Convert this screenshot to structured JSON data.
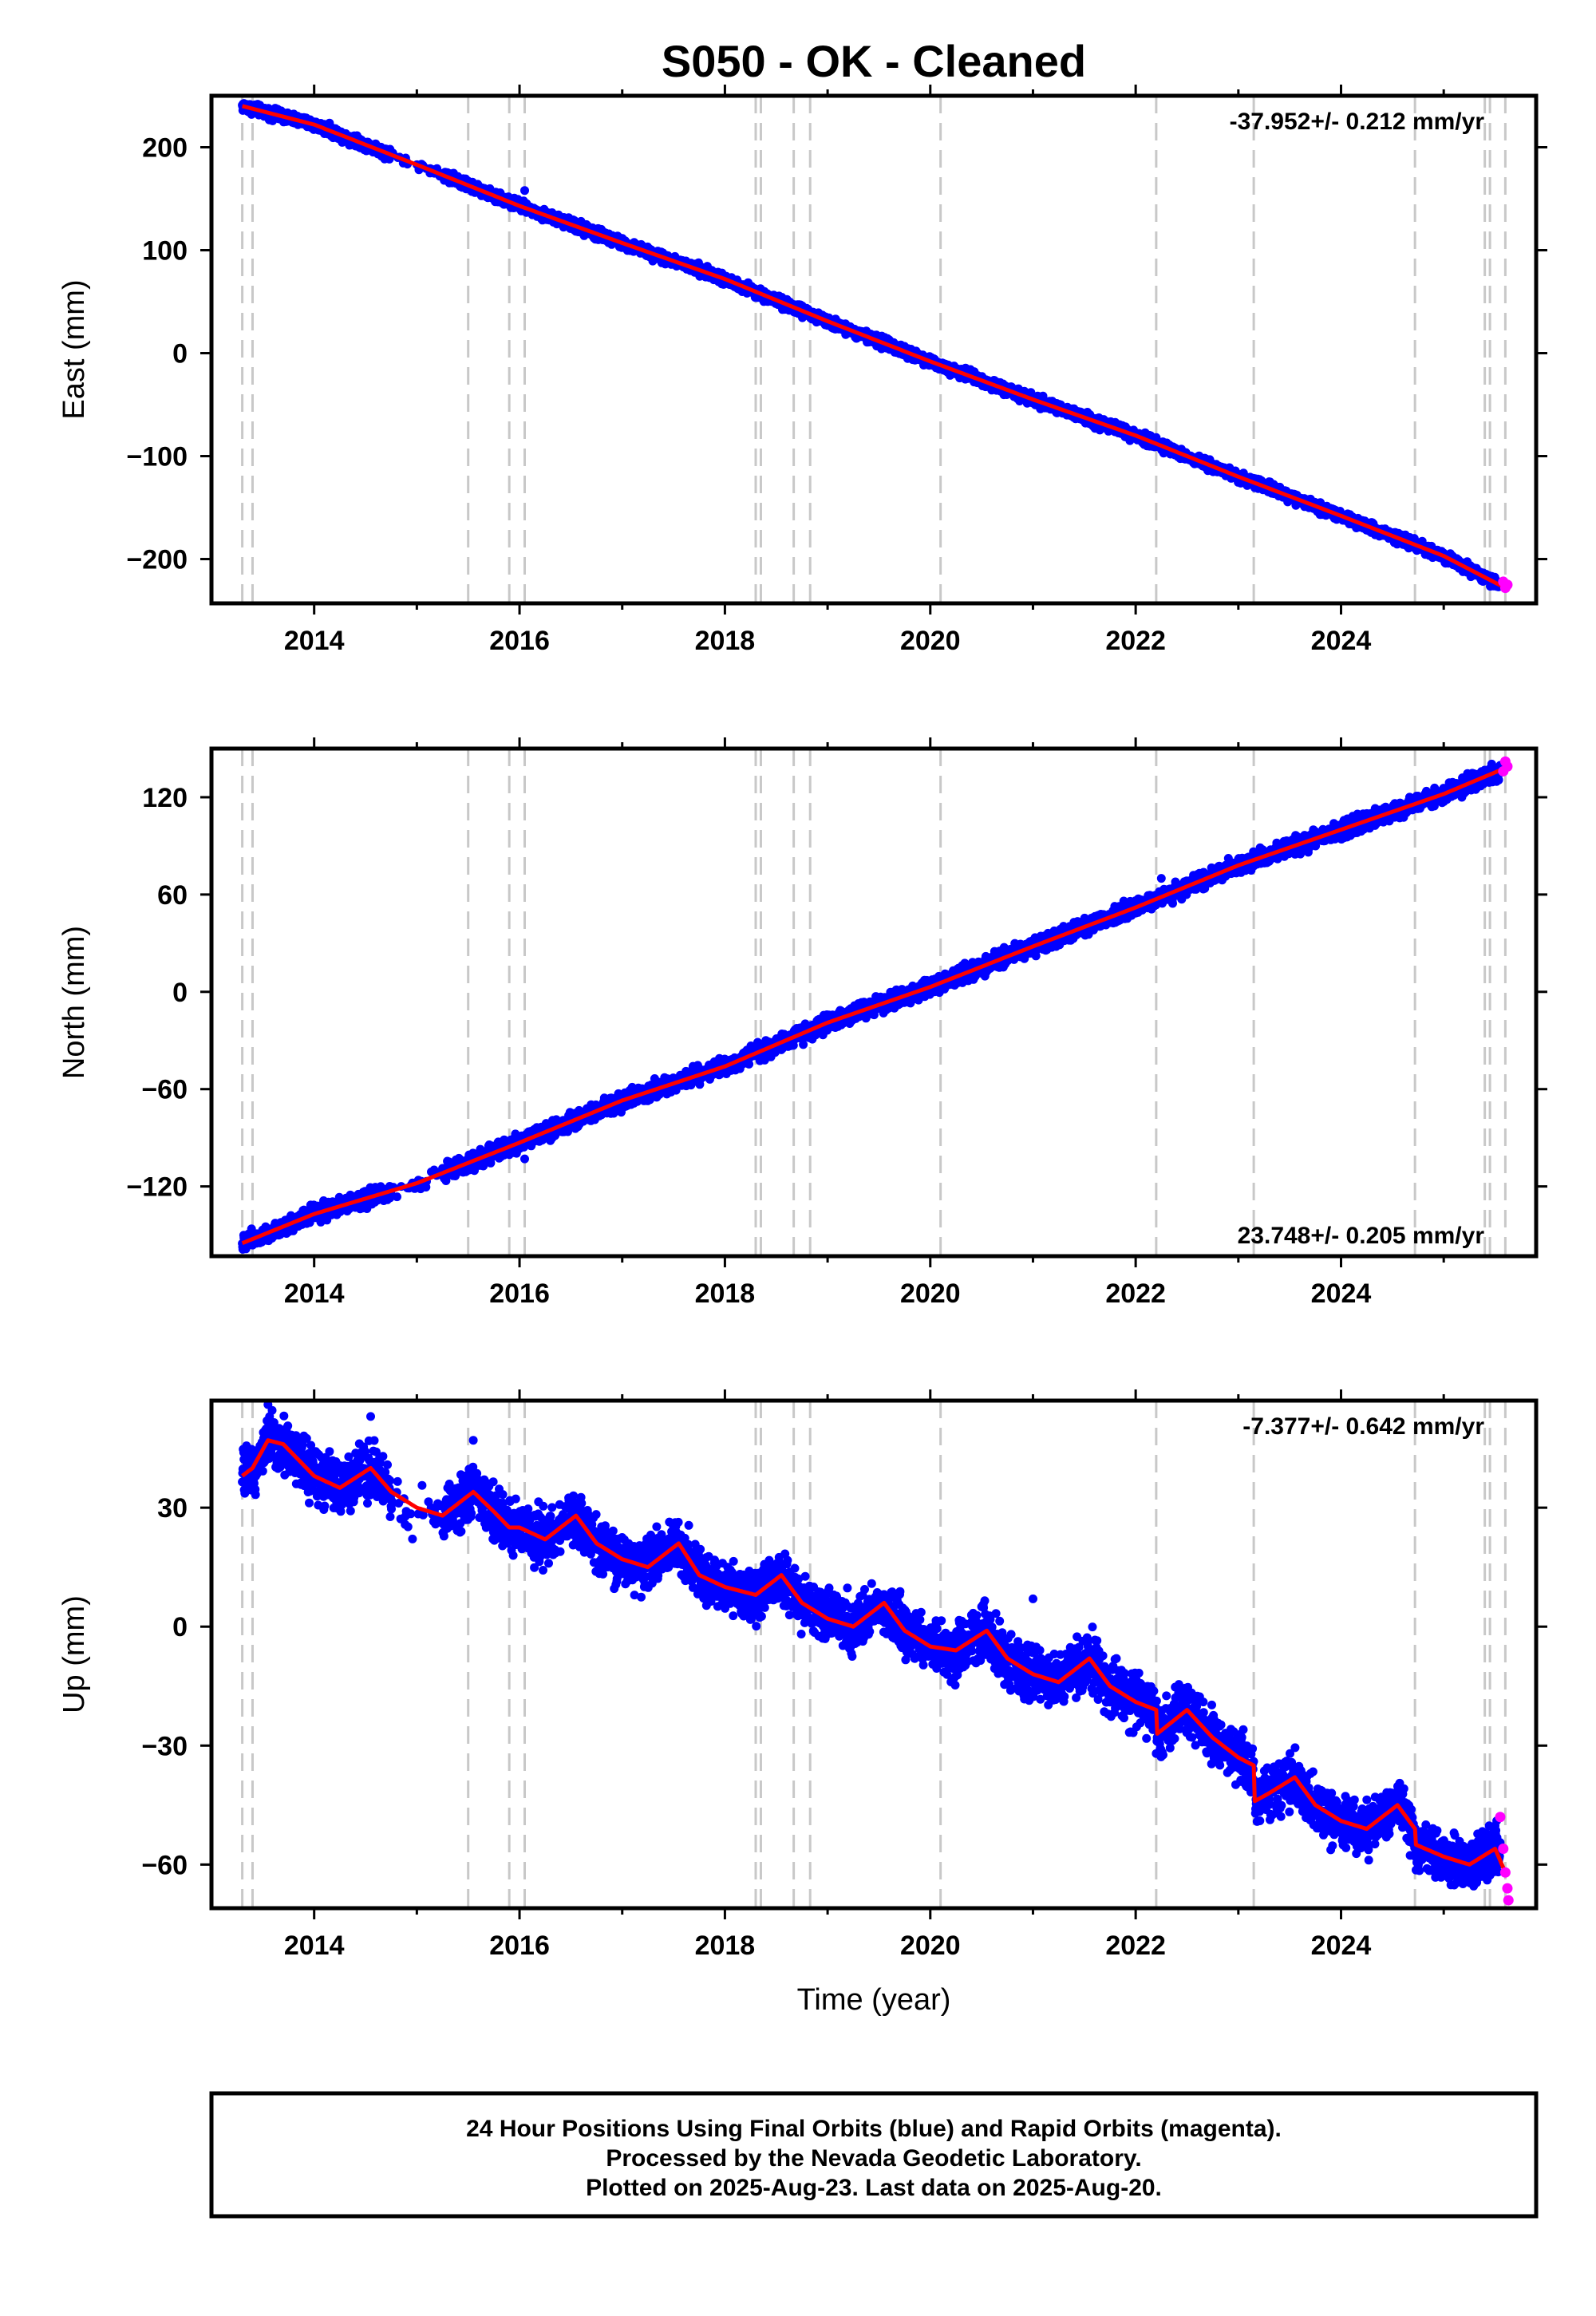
{
  "title": "S050  - OK - Cleaned",
  "xlabel": "Time (year)",
  "footer": [
    "24 Hour Positions Using Final Orbits (blue) and Rapid Orbits (magenta).",
    "Processed by the Nevada Geodetic Laboratory.",
    "Plotted on 2025-Aug-23. Last data on 2025-Aug-20."
  ],
  "colors": {
    "final": "#0000ff",
    "rapid": "#ff00ff",
    "model": "#ff0000",
    "steps": "#c8c8c8"
  },
  "chart_data": [
    {
      "type": "scatter",
      "ylabel": "East (mm)",
      "rate_text": "-37.952+/- 0.212 mm/yr",
      "rate_position": "top-right",
      "xlim": [
        2013.0,
        2025.9
      ],
      "ylim": [
        -243,
        250
      ],
      "xticks": [
        2014,
        2016,
        2018,
        2020,
        2022,
        2024
      ],
      "yticks": [
        200,
        100,
        0,
        -100,
        -200
      ],
      "yticklabels": [
        "200",
        "100",
        "0",
        "−100",
        "−200"
      ],
      "step_years": [
        2013.3,
        2013.4,
        2015.5,
        2015.9,
        2016.05,
        2018.3,
        2018.35,
        2018.67,
        2018.83,
        2020.1,
        2022.2,
        2023.15,
        2024.72,
        2025.4,
        2025.45,
        2025.6
      ],
      "model_line": [
        [
          2013.3,
          240
        ],
        [
          2014.0,
          222
        ],
        [
          2015.0,
          183
        ],
        [
          2016.0,
          143
        ],
        [
          2017.0,
          107
        ],
        [
          2018.0,
          72
        ],
        [
          2019.0,
          31
        ],
        [
          2020.0,
          -8
        ],
        [
          2021.0,
          -45
        ],
        [
          2022.0,
          -80
        ],
        [
          2023.0,
          -120
        ],
        [
          2024.0,
          -158
        ],
        [
          2025.0,
          -197
        ],
        [
          2025.6,
          -228
        ]
      ],
      "outliers": [
        [
          2016.05,
          158
        ],
        [
          2022.2,
          -82
        ]
      ],
      "rapid_points": [
        [
          2025.58,
          -222
        ],
        [
          2025.6,
          -228
        ],
        [
          2025.62,
          -225
        ]
      ],
      "noise_mm": 2.5
    },
    {
      "type": "scatter",
      "ylabel": "North (mm)",
      "rate_text": "23.748+/- 0.205 mm/yr",
      "rate_position": "bottom-right",
      "xlim": [
        2013.0,
        2025.9
      ],
      "ylim": [
        -163,
        150
      ],
      "xticks": [
        2014,
        2016,
        2018,
        2020,
        2022,
        2024
      ],
      "yticks": [
        120,
        60,
        0,
        -60,
        -120
      ],
      "yticklabels": [
        "120",
        "60",
        "0",
        "−60",
        "−120"
      ],
      "step_years": [
        2013.3,
        2013.4,
        2015.5,
        2015.9,
        2016.05,
        2018.3,
        2018.35,
        2018.67,
        2018.83,
        2020.1,
        2022.2,
        2023.15,
        2024.72,
        2025.4,
        2025.45,
        2025.6
      ],
      "model_line": [
        [
          2013.3,
          -155
        ],
        [
          2014.0,
          -137
        ],
        [
          2015.0,
          -118
        ],
        [
          2016.0,
          -93
        ],
        [
          2017.0,
          -67
        ],
        [
          2018.0,
          -46
        ],
        [
          2019.0,
          -19
        ],
        [
          2020.0,
          3
        ],
        [
          2021.0,
          28
        ],
        [
          2022.0,
          52
        ],
        [
          2023.0,
          78
        ],
        [
          2024.0,
          100
        ],
        [
          2025.0,
          122
        ],
        [
          2025.6,
          138
        ]
      ],
      "outliers": [
        [
          2016.05,
          -103
        ],
        [
          2022.25,
          70
        ]
      ],
      "rapid_points": [
        [
          2025.58,
          136
        ],
        [
          2025.6,
          142
        ],
        [
          2025.62,
          139
        ]
      ],
      "noise_mm": 2.5
    },
    {
      "type": "scatter",
      "ylabel": "Up (mm)",
      "rate_text": "-7.377+/- 0.642 mm/yr",
      "rate_position": "top-right",
      "xlim": [
        2013.0,
        2025.9
      ],
      "ylim": [
        -71,
        57
      ],
      "xticks": [
        2014,
        2016,
        2018,
        2020,
        2022,
        2024
      ],
      "yticks": [
        30,
        0,
        -30,
        -60
      ],
      "yticklabels": [
        "30",
        "0",
        "−30",
        "−60"
      ],
      "step_years": [
        2013.3,
        2013.4,
        2015.5,
        2015.9,
        2016.05,
        2018.3,
        2018.35,
        2018.67,
        2018.83,
        2020.1,
        2022.2,
        2023.15,
        2024.72,
        2025.4,
        2025.45,
        2025.6
      ],
      "model_line": [
        [
          2013.3,
          38
        ],
        [
          2013.4,
          40
        ],
        [
          2013.55,
          47
        ],
        [
          2013.7,
          46
        ],
        [
          2014.0,
          38
        ],
        [
          2014.25,
          35
        ],
        [
          2014.55,
          40
        ],
        [
          2014.75,
          34
        ],
        [
          2015.0,
          30
        ],
        [
          2015.25,
          28
        ],
        [
          2015.55,
          34
        ],
        [
          2015.75,
          29
        ],
        [
          2015.9,
          25
        ],
        [
          2016.0,
          25
        ],
        [
          2016.25,
          22
        ],
        [
          2016.55,
          28
        ],
        [
          2016.75,
          21
        ],
        [
          2017.0,
          17
        ],
        [
          2017.25,
          15
        ],
        [
          2017.55,
          21
        ],
        [
          2017.75,
          13
        ],
        [
          2018.0,
          10
        ],
        [
          2018.3,
          8
        ],
        [
          2018.55,
          13
        ],
        [
          2018.75,
          6
        ],
        [
          2019.0,
          2
        ],
        [
          2019.25,
          0
        ],
        [
          2019.55,
          6
        ],
        [
          2019.75,
          -1
        ],
        [
          2020.0,
          -5
        ],
        [
          2020.25,
          -6
        ],
        [
          2020.55,
          -1
        ],
        [
          2020.75,
          -8
        ],
        [
          2021.0,
          -12
        ],
        [
          2021.25,
          -14
        ],
        [
          2021.55,
          -8
        ],
        [
          2021.75,
          -15
        ],
        [
          2022.0,
          -19
        ],
        [
          2022.2,
          -21
        ],
        [
          2022.21,
          -27
        ],
        [
          2022.5,
          -21
        ],
        [
          2022.75,
          -28
        ],
        [
          2023.0,
          -33
        ],
        [
          2023.15,
          -35
        ],
        [
          2023.16,
          -44
        ],
        [
          2023.3,
          -42
        ],
        [
          2023.55,
          -38
        ],
        [
          2023.75,
          -45
        ],
        [
          2024.0,
          -49
        ],
        [
          2024.25,
          -51
        ],
        [
          2024.55,
          -45
        ],
        [
          2024.72,
          -51
        ],
        [
          2024.73,
          -55
        ],
        [
          2025.0,
          -58
        ],
        [
          2025.25,
          -60
        ],
        [
          2025.5,
          -56
        ],
        [
          2025.6,
          -62
        ]
      ],
      "outliers": [
        [
          2013.55,
          56
        ],
        [
          2014.55,
          53
        ],
        [
          2015.55,
          47
        ],
        [
          2021.0,
          7
        ],
        [
          2022.2,
          -32
        ]
      ],
      "rapid_points": [
        [
          2025.55,
          -48
        ],
        [
          2025.58,
          -56
        ],
        [
          2025.6,
          -62
        ],
        [
          2025.62,
          -66
        ],
        [
          2025.63,
          -69
        ]
      ],
      "noise_mm": 3.2
    }
  ]
}
